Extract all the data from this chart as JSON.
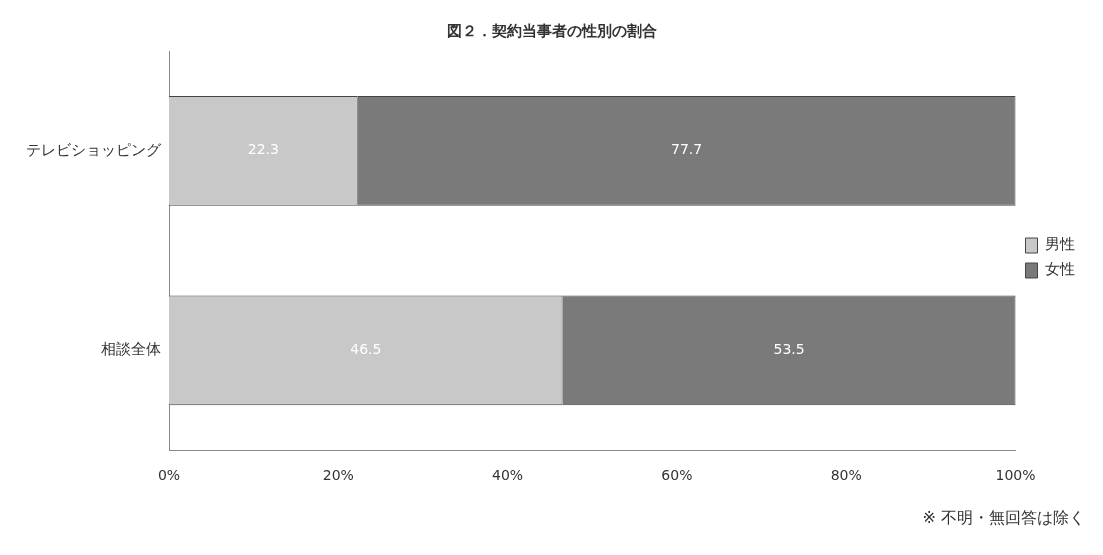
{
  "chart_data": {
    "type": "bar",
    "orientation": "horizontal",
    "stacked": true,
    "title": "図２．契約当事者の性別の割合",
    "categories": [
      "テレビショッピング",
      "相談全体"
    ],
    "series": [
      {
        "name": "男性",
        "color": "#c8c8c8",
        "values": [
          22.3,
          46.5
        ]
      },
      {
        "name": "女性",
        "color": "#7a7a7a",
        "values": [
          77.7,
          53.5
        ]
      }
    ],
    "xlim": [
      0,
      100
    ],
    "xticks": [
      {
        "value": 0,
        "label": "0%"
      },
      {
        "value": 20,
        "label": "20%"
      },
      {
        "value": 40,
        "label": "40%"
      },
      {
        "value": 60,
        "label": "60%"
      },
      {
        "value": 80,
        "label": "80%"
      },
      {
        "value": 100,
        "label": "100%"
      }
    ],
    "data_labels": true,
    "legend": "right",
    "grid": false,
    "annotations": [
      "※ 不明・無回答は除く"
    ]
  }
}
